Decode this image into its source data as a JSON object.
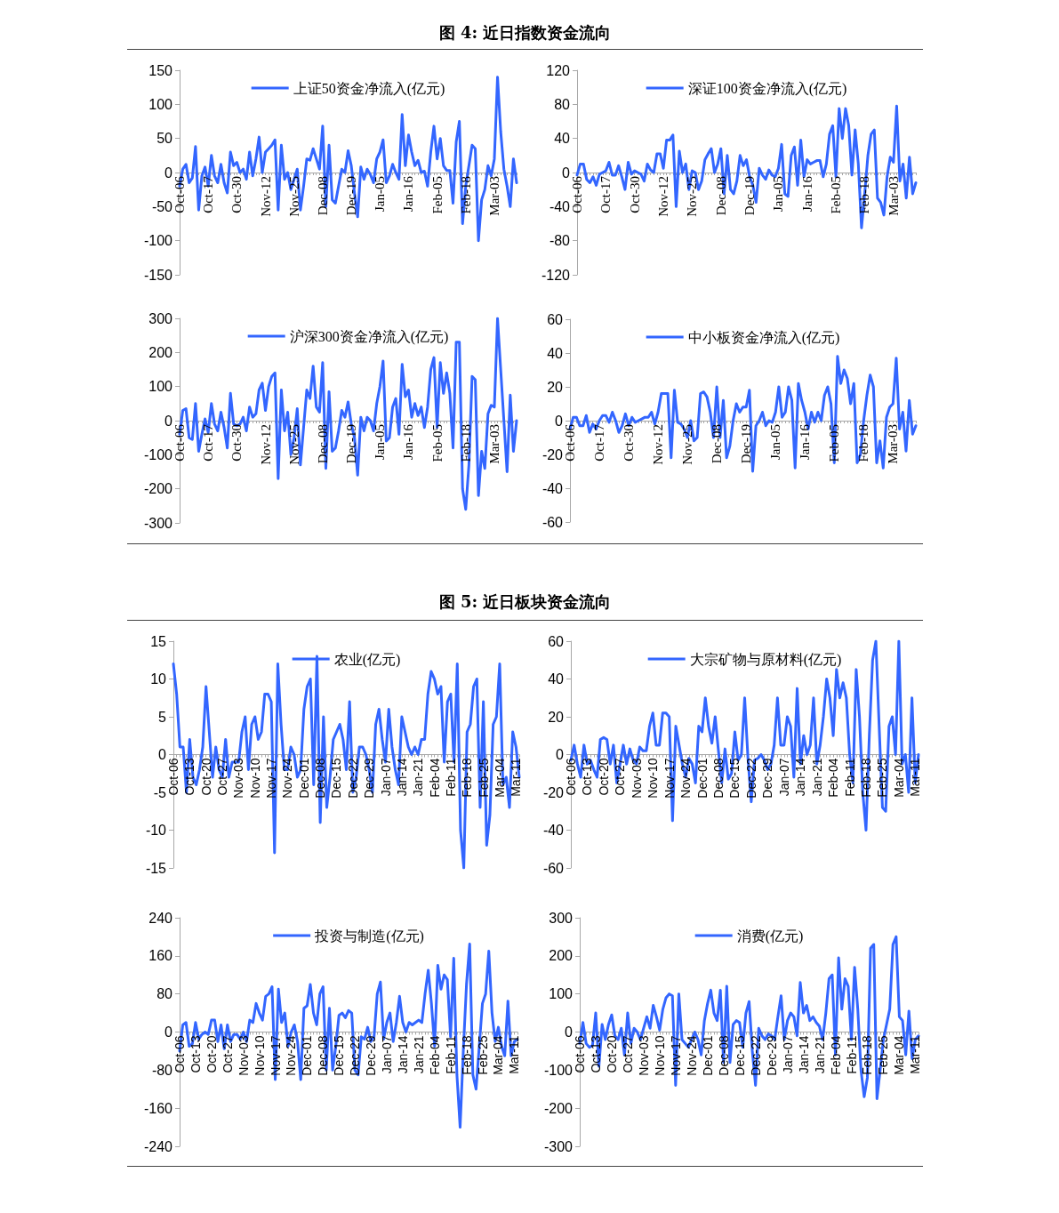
{
  "chart_data": [
    {
      "type": "other",
      "title": "图 4: 近日指数资金流向"
    },
    {
      "type": "line",
      "categories": [
        "Oct-06",
        null,
        null,
        null,
        null,
        null,
        null,
        null,
        null,
        "Oct-17",
        null,
        null,
        null,
        null,
        null,
        null,
        null,
        null,
        "Oct-30",
        null,
        null,
        null,
        null,
        null,
        null,
        null,
        null,
        "Nov-12",
        null,
        null,
        null,
        null,
        null,
        null,
        null,
        null,
        "Nov-25",
        null,
        null,
        null,
        null,
        null,
        null,
        null,
        null,
        "Dec-08",
        null,
        null,
        null,
        null,
        null,
        null,
        null,
        null,
        "Dec-19",
        null,
        null,
        null,
        null,
        null,
        null,
        null,
        null,
        "Jan-05",
        null,
        null,
        null,
        null,
        null,
        null,
        null,
        null,
        "Jan-16",
        null,
        null,
        null,
        null,
        null,
        null,
        null,
        null,
        "Feb-05",
        null,
        null,
        null,
        null,
        null,
        null,
        null,
        null,
        "Feb-18",
        null,
        null,
        null,
        null,
        null,
        null,
        null,
        null,
        "Mar-03",
        null,
        null,
        null,
        null,
        null,
        null,
        null
      ],
      "series": [
        {
          "name": "上证50资金净流入(亿元)",
          "color": "#3366ff",
          "values": [
            -20,
            5,
            12,
            -15,
            -8,
            38,
            -55,
            -5,
            8,
            -20,
            25,
            -5,
            -15,
            12,
            -15,
            -30,
            30,
            10,
            15,
            0,
            5,
            -10,
            30,
            -5,
            20,
            52,
            0,
            30,
            35,
            40,
            48,
            -55,
            40,
            -10,
            0,
            -25,
            -10,
            5,
            -55,
            -20,
            20,
            18,
            35,
            20,
            5,
            68,
            -50,
            40,
            -40,
            -45,
            -20,
            5,
            0,
            32,
            10,
            -30,
            -65,
            8,
            -10,
            5,
            -3,
            -15,
            20,
            30,
            48,
            -15,
            -5,
            12,
            0,
            -10,
            85,
            10,
            55,
            30,
            10,
            18,
            0,
            2,
            -20,
            30,
            68,
            20,
            50,
            10,
            3,
            3,
            -45,
            45,
            75,
            -75,
            -20,
            10,
            40,
            35,
            -100,
            -40,
            -25,
            10,
            -5,
            20,
            140,
            60,
            5,
            -20,
            -50,
            20,
            -15
          ]
        }
      ],
      "ylim": [
        -150,
        150
      ],
      "yticks": [
        -150,
        -100,
        -50,
        0,
        50,
        100,
        150
      ],
      "legend": "top",
      "marker": "none"
    },
    {
      "type": "line",
      "categories": [
        "Oct-06",
        null,
        null,
        null,
        null,
        null,
        null,
        null,
        null,
        "Oct-17",
        null,
        null,
        null,
        null,
        null,
        null,
        null,
        null,
        "Oct-30",
        null,
        null,
        null,
        null,
        null,
        null,
        null,
        null,
        "Nov-12",
        null,
        null,
        null,
        null,
        null,
        null,
        null,
        null,
        "Nov-25",
        null,
        null,
        null,
        null,
        null,
        null,
        null,
        null,
        "Dec-08",
        null,
        null,
        null,
        null,
        null,
        null,
        null,
        null,
        "Dec-19",
        null,
        null,
        null,
        null,
        null,
        null,
        null,
        null,
        "Jan-05",
        null,
        null,
        null,
        null,
        null,
        null,
        null,
        null,
        "Jan-16",
        null,
        null,
        null,
        null,
        null,
        null,
        null,
        null,
        "Feb-05",
        null,
        null,
        null,
        null,
        null,
        null,
        null,
        null,
        "Feb-18",
        null,
        null,
        null,
        null,
        null,
        null,
        null,
        null,
        "Mar-03",
        null,
        null,
        null,
        null,
        null,
        null,
        null
      ],
      "series": [
        {
          "name": "深证100资金净流入(亿元)",
          "color": "#3366ff",
          "values": [
            -3,
            10,
            10,
            -8,
            -12,
            -5,
            -15,
            -2,
            0,
            2,
            12,
            -3,
            -3,
            8,
            -5,
            -20,
            12,
            -2,
            2,
            0,
            -2,
            -10,
            10,
            3,
            0,
            22,
            22,
            5,
            38,
            38,
            44,
            -40,
            25,
            0,
            10,
            -20,
            2,
            0,
            -20,
            -10,
            15,
            22,
            28,
            0,
            10,
            28,
            -25,
            20,
            -20,
            -25,
            -10,
            20,
            8,
            15,
            -5,
            -15,
            -35,
            5,
            -3,
            -8,
            3,
            -3,
            -5,
            5,
            33,
            -25,
            -28,
            20,
            30,
            -15,
            38,
            -5,
            15,
            10,
            12,
            14,
            14,
            -5,
            10,
            45,
            55,
            -5,
            75,
            40,
            75,
            55,
            -3,
            50,
            10,
            -65,
            -25,
            20,
            45,
            50,
            -30,
            -35,
            -50,
            -5,
            18,
            12,
            78,
            -10,
            10,
            -30,
            18,
            -25,
            -12
          ]
        }
      ],
      "ylim": [
        -120,
        120
      ],
      "yticks": [
        -120,
        -80,
        -40,
        0,
        40,
        80,
        120
      ],
      "legend": "top",
      "marker": "none"
    },
    {
      "type": "line",
      "categories": [
        "Oct-06",
        null,
        null,
        null,
        null,
        null,
        null,
        null,
        null,
        "Oct-17",
        null,
        null,
        null,
        null,
        null,
        null,
        null,
        null,
        "Oct-30",
        null,
        null,
        null,
        null,
        null,
        null,
        null,
        null,
        "Nov-12",
        null,
        null,
        null,
        null,
        null,
        null,
        null,
        null,
        "Nov-25",
        null,
        null,
        null,
        null,
        null,
        null,
        null,
        null,
        "Dec-08",
        null,
        null,
        null,
        null,
        null,
        null,
        null,
        null,
        "Dec-19",
        null,
        null,
        null,
        null,
        null,
        null,
        null,
        null,
        "Jan-05",
        null,
        null,
        null,
        null,
        null,
        null,
        null,
        null,
        "Jan-16",
        null,
        null,
        null,
        null,
        null,
        null,
        null,
        null,
        "Feb-05",
        null,
        null,
        null,
        null,
        null,
        null,
        null,
        null,
        "Feb-18",
        null,
        null,
        null,
        null,
        null,
        null,
        null,
        null,
        "Mar-03",
        null,
        null,
        null,
        null,
        null,
        null,
        null
      ],
      "series": [
        {
          "name": "沪深300资金净流入(亿元)",
          "color": "#3366ff",
          "values": [
            -40,
            30,
            35,
            -50,
            -55,
            50,
            -90,
            -40,
            5,
            -35,
            50,
            -10,
            -30,
            25,
            -20,
            -80,
            80,
            -10,
            -15,
            -10,
            10,
            -30,
            40,
            10,
            20,
            90,
            110,
            30,
            100,
            130,
            140,
            -170,
            90,
            -30,
            25,
            -100,
            -50,
            35,
            -130,
            -20,
            90,
            65,
            160,
            40,
            25,
            170,
            -140,
            85,
            -90,
            -80,
            -30,
            30,
            10,
            55,
            -10,
            -50,
            -160,
            10,
            -30,
            10,
            0,
            -30,
            50,
            100,
            175,
            -60,
            -50,
            40,
            65,
            -40,
            165,
            70,
            90,
            10,
            50,
            15,
            40,
            -20,
            40,
            150,
            185,
            -20,
            170,
            80,
            140,
            80,
            -80,
            230,
            230,
            -200,
            -260,
            -130,
            130,
            120,
            -220,
            -90,
            -140,
            20,
            45,
            40,
            300,
            150,
            0,
            -150,
            75,
            -90,
            0
          ]
        }
      ],
      "ylim": [
        -300,
        300
      ],
      "yticks": [
        -300,
        -200,
        -100,
        0,
        100,
        200,
        300
      ],
      "legend": "top",
      "marker": "none"
    },
    {
      "type": "line",
      "categories": [
        "Oct-06",
        null,
        null,
        null,
        null,
        null,
        null,
        null,
        null,
        "Oct-17",
        null,
        null,
        null,
        null,
        null,
        null,
        null,
        null,
        "Oct-30",
        null,
        null,
        null,
        null,
        null,
        null,
        null,
        null,
        "Nov-12",
        null,
        null,
        null,
        null,
        null,
        null,
        null,
        null,
        "Nov-25",
        null,
        null,
        null,
        null,
        null,
        null,
        null,
        null,
        "Dec-08",
        null,
        null,
        null,
        null,
        null,
        null,
        null,
        null,
        "Dec-19",
        null,
        null,
        null,
        null,
        null,
        null,
        null,
        null,
        "Jan-05",
        null,
        null,
        null,
        null,
        null,
        null,
        null,
        null,
        "Jan-16",
        null,
        null,
        null,
        null,
        null,
        null,
        null,
        null,
        "Feb-05",
        null,
        null,
        null,
        null,
        null,
        null,
        null,
        null,
        "Feb-18",
        null,
        null,
        null,
        null,
        null,
        null,
        null,
        null,
        "Mar-03",
        null,
        null,
        null,
        null,
        null,
        null,
        null
      ],
      "series": [
        {
          "name": "中小板资金净流入(亿元)",
          "color": "#3366ff",
          "values": [
            -5,
            2,
            2,
            -3,
            -3,
            3,
            -7,
            -2,
            -5,
            0,
            3,
            3,
            -1,
            5,
            0,
            -7,
            -3,
            4,
            -3,
            2,
            -1,
            0,
            1,
            2,
            2,
            5,
            -2,
            5,
            16,
            16,
            16,
            -22,
            18,
            -1,
            -2,
            -5,
            -10,
            0,
            -12,
            -10,
            16,
            17,
            14,
            5,
            -10,
            20,
            -10,
            12,
            -22,
            -15,
            0,
            10,
            5,
            8,
            8,
            18,
            -30,
            -3,
            0,
            5,
            -3,
            0,
            -1,
            5,
            20,
            2,
            5,
            20,
            12,
            -28,
            22,
            12,
            5,
            -5,
            5,
            -1,
            5,
            0,
            15,
            20,
            10,
            -25,
            38,
            22,
            30,
            25,
            10,
            22,
            -25,
            -20,
            0,
            15,
            27,
            20,
            -25,
            -12,
            -28,
            2,
            8,
            10,
            37,
            -5,
            5,
            -18,
            12,
            -8,
            -3
          ]
        }
      ],
      "ylim": [
        -60,
        60
      ],
      "yticks": [
        -60,
        -40,
        -20,
        0,
        20,
        40,
        60
      ],
      "legend": "top",
      "marker": "none"
    },
    {
      "type": "other",
      "title": "图 5: 近日板块资金流向"
    },
    {
      "type": "line",
      "categories": [
        "Oct-06",
        null,
        null,
        null,
        null,
        "Oct-13",
        null,
        null,
        null,
        null,
        "Oct-20",
        null,
        null,
        null,
        null,
        "Oct-27",
        null,
        null,
        null,
        null,
        "Nov-03",
        null,
        null,
        null,
        null,
        "Nov-10",
        null,
        null,
        null,
        null,
        "Nov-17",
        null,
        null,
        null,
        null,
        "Nov-24",
        null,
        null,
        null,
        null,
        "Dec-01",
        null,
        null,
        null,
        null,
        "Dec-08",
        null,
        null,
        null,
        null,
        "Dec-15",
        null,
        null,
        null,
        null,
        "Dec-22",
        null,
        null,
        null,
        null,
        "Dec-29",
        null,
        null,
        null,
        null,
        "Jan-07",
        null,
        null,
        null,
        null,
        "Jan-14",
        null,
        null,
        null,
        null,
        "Jan-21",
        null,
        null,
        null,
        null,
        "Feb-04",
        null,
        null,
        null,
        null,
        "Feb-11",
        null,
        null,
        null,
        null,
        "Feb-18",
        null,
        null,
        null,
        null,
        "Feb-25",
        null,
        null,
        null,
        null,
        "Mar-04",
        null,
        null,
        null,
        null,
        "Mar-11",
        null
      ],
      "series": [
        {
          "name": "农业(亿元)",
          "color": "#3366ff",
          "values": [
            12,
            8,
            1,
            1,
            -5,
            2,
            -3,
            -4,
            -2,
            1,
            9,
            3,
            -3,
            1,
            -2,
            -3,
            2,
            -3,
            -1,
            -1,
            -1,
            3,
            5,
            -2,
            4,
            5,
            2,
            3,
            8,
            8,
            7,
            -13,
            12,
            4,
            -2,
            -2,
            1,
            0,
            -3,
            -2,
            6,
            9,
            10,
            -4,
            13,
            -9,
            5,
            -7,
            -3,
            2,
            3,
            4,
            2,
            -2,
            7,
            -5,
            -3,
            1,
            1,
            0,
            -2,
            -5,
            4,
            6,
            2,
            -1,
            6,
            1,
            -2,
            -4,
            5,
            3,
            1,
            0,
            1,
            0,
            2,
            2,
            8,
            11,
            10,
            8,
            9,
            -1,
            7,
            8,
            -1,
            12,
            -10,
            -15,
            3,
            4,
            9,
            10,
            -7,
            7,
            -12,
            -8,
            4,
            5,
            12,
            -4,
            -3,
            -7,
            3,
            1,
            -3
          ]
        }
      ],
      "ylim": [
        -15,
        15
      ],
      "yticks": [
        -15,
        -10,
        -5,
        0,
        5,
        10,
        15
      ],
      "legend": "top",
      "marker": "none"
    },
    {
      "type": "line",
      "categories": [
        "Oct-06",
        null,
        null,
        null,
        null,
        "Oct-13",
        null,
        null,
        null,
        null,
        "Oct-20",
        null,
        null,
        null,
        null,
        "Oct-27",
        null,
        null,
        null,
        null,
        "Nov-03",
        null,
        null,
        null,
        null,
        "Nov-10",
        null,
        null,
        null,
        null,
        "Nov-17",
        null,
        null,
        null,
        null,
        "Nov-24",
        null,
        null,
        null,
        null,
        "Dec-01",
        null,
        null,
        null,
        null,
        "Dec-08",
        null,
        null,
        null,
        null,
        "Dec-15",
        null,
        null,
        null,
        null,
        "Dec-22",
        null,
        null,
        null,
        null,
        "Dec-29",
        null,
        null,
        null,
        null,
        "Jan-07",
        null,
        null,
        null,
        null,
        "Jan-14",
        null,
        null,
        null,
        null,
        "Jan-21",
        null,
        null,
        null,
        null,
        "Feb-04",
        null,
        null,
        null,
        null,
        "Feb-11",
        null,
        null,
        null,
        null,
        "Feb-18",
        null,
        null,
        null,
        null,
        "Feb-25",
        null,
        null,
        null,
        null,
        "Mar-04",
        null,
        null,
        null,
        null,
        "Mar-11",
        null
      ],
      "series": [
        {
          "name": "大宗矿物与原材料(亿元)",
          "color": "#3366ff",
          "values": [
            -3,
            5,
            -5,
            -12,
            5,
            -5,
            -3,
            -8,
            -12,
            8,
            9,
            8,
            -5,
            5,
            -15,
            -5,
            5,
            -5,
            3,
            -3,
            -5,
            4,
            2,
            2,
            15,
            22,
            5,
            5,
            22,
            22,
            20,
            -35,
            15,
            5,
            -5,
            -12,
            -2,
            -5,
            -15,
            15,
            12,
            30,
            15,
            6,
            20,
            2,
            -15,
            3,
            -13,
            -10,
            12,
            -3,
            0,
            30,
            -2,
            -25,
            -3,
            -2,
            0,
            -3,
            -8,
            -5,
            5,
            30,
            5,
            5,
            20,
            15,
            -12,
            35,
            -5,
            10,
            0,
            5,
            30,
            -5,
            5,
            20,
            40,
            30,
            10,
            45,
            30,
            38,
            30,
            0,
            -15,
            45,
            20,
            -20,
            -40,
            10,
            50,
            60,
            15,
            -28,
            -30,
            15,
            20,
            0,
            60,
            -5,
            0,
            -20,
            30,
            -15,
            0
          ]
        }
      ],
      "ylim": [
        -60,
        60
      ],
      "yticks": [
        -60,
        -40,
        -20,
        0,
        20,
        40,
        60
      ],
      "legend": "top",
      "marker": "none"
    },
    {
      "type": "line",
      "categories": [
        "Oct-06",
        null,
        null,
        null,
        null,
        "Oct-13",
        null,
        null,
        null,
        null,
        "Oct-20",
        null,
        null,
        null,
        null,
        "Oct-27",
        null,
        null,
        null,
        null,
        "Nov-03",
        null,
        null,
        null,
        null,
        "Nov-10",
        null,
        null,
        null,
        null,
        "Nov-17",
        null,
        null,
        null,
        null,
        "Nov-24",
        null,
        null,
        null,
        null,
        "Dec-01",
        null,
        null,
        null,
        null,
        "Dec-08",
        null,
        null,
        null,
        null,
        "Dec-15",
        null,
        null,
        null,
        null,
        "Dec-22",
        null,
        null,
        null,
        null,
        "Dec-29",
        null,
        null,
        null,
        null,
        "Jan-07",
        null,
        null,
        null,
        null,
        "Jan-14",
        null,
        null,
        null,
        null,
        "Jan-21",
        null,
        null,
        null,
        null,
        "Feb-04",
        null,
        null,
        null,
        null,
        "Feb-11",
        null,
        null,
        null,
        null,
        "Feb-18",
        null,
        null,
        null,
        null,
        "Feb-25",
        null,
        null,
        null,
        null,
        "Mar-04",
        null,
        null,
        null,
        null,
        "Mar-11",
        null
      ],
      "series": [
        {
          "name": "投资与制造(亿元)",
          "color": "#3366ff",
          "values": [
            -40,
            15,
            20,
            -30,
            -25,
            20,
            -15,
            -5,
            0,
            -5,
            25,
            25,
            -20,
            15,
            -35,
            15,
            -20,
            -5,
            -5,
            -15,
            0,
            -20,
            25,
            20,
            60,
            40,
            25,
            75,
            80,
            95,
            -100,
            90,
            20,
            40,
            -30,
            0,
            15,
            -20,
            -100,
            50,
            55,
            100,
            40,
            15,
            80,
            95,
            -80,
            50,
            -80,
            -30,
            35,
            40,
            30,
            45,
            40,
            -80,
            -90,
            -10,
            -15,
            10,
            -20,
            -10,
            80,
            105,
            -15,
            20,
            40,
            -20,
            20,
            75,
            20,
            0,
            20,
            15,
            20,
            25,
            20,
            80,
            130,
            60,
            -30,
            140,
            90,
            120,
            110,
            -10,
            155,
            -90,
            -200,
            -40,
            100,
            185,
            -90,
            -120,
            -30,
            60,
            80,
            170,
            40,
            -20,
            10,
            -30,
            -50,
            65,
            -50,
            -20,
            -15
          ]
        }
      ],
      "ylim": [
        -240,
        240
      ],
      "yticks": [
        -240,
        -160,
        -80,
        0,
        80,
        160,
        240
      ],
      "legend": "top",
      "marker": "none"
    },
    {
      "type": "line",
      "categories": [
        "Oct-06",
        null,
        null,
        null,
        null,
        "Oct-13",
        null,
        null,
        null,
        null,
        "Oct-20",
        null,
        null,
        null,
        null,
        "Oct-27",
        null,
        null,
        null,
        null,
        "Nov-03",
        null,
        null,
        null,
        null,
        "Nov-10",
        null,
        null,
        null,
        null,
        "Nov-17",
        null,
        null,
        null,
        null,
        "Nov-24",
        null,
        null,
        null,
        null,
        "Dec-01",
        null,
        null,
        null,
        null,
        "Dec-08",
        null,
        null,
        null,
        null,
        "Dec-15",
        null,
        null,
        null,
        null,
        "Dec-22",
        null,
        null,
        null,
        null,
        "Dec-29",
        null,
        null,
        null,
        null,
        "Jan-07",
        null,
        null,
        null,
        null,
        "Jan-14",
        null,
        null,
        null,
        null,
        "Jan-21",
        null,
        null,
        null,
        null,
        "Feb-04",
        null,
        null,
        null,
        null,
        "Feb-11",
        null,
        null,
        null,
        null,
        "Feb-18",
        null,
        null,
        null,
        null,
        "Feb-25",
        null,
        null,
        null,
        null,
        "Mar-04",
        null,
        null,
        null,
        null,
        "Mar-11",
        null
      ],
      "series": [
        {
          "name": "消费(亿元)",
          "color": "#3366ff",
          "values": [
            -30,
            25,
            -30,
            -40,
            -35,
            50,
            -90,
            20,
            -20,
            20,
            45,
            -10,
            -20,
            10,
            -60,
            50,
            -30,
            10,
            0,
            -20,
            10,
            40,
            10,
            70,
            40,
            5,
            60,
            90,
            100,
            95,
            -140,
            100,
            -20,
            -30,
            -40,
            -20,
            0,
            -20,
            -60,
            30,
            75,
            110,
            50,
            30,
            110,
            -80,
            120,
            -80,
            20,
            30,
            25,
            -40,
            50,
            80,
            -50,
            -140,
            10,
            -10,
            -20,
            -5,
            -10,
            -20,
            40,
            95,
            -20,
            30,
            50,
            40,
            -10,
            130,
            50,
            70,
            30,
            40,
            25,
            15,
            -20,
            50,
            140,
            150,
            -60,
            195,
            60,
            140,
            120,
            -20,
            170,
            60,
            -100,
            -170,
            -120,
            220,
            230,
            -175,
            -100,
            -20,
            20,
            60,
            230,
            250,
            40,
            30,
            -60,
            55,
            -70,
            -20,
            -10
          ]
        }
      ],
      "ylim": [
        -300,
        300
      ],
      "yticks": [
        -300,
        -200,
        -100,
        0,
        100,
        200,
        300
      ],
      "legend": "top",
      "marker": "none"
    }
  ]
}
